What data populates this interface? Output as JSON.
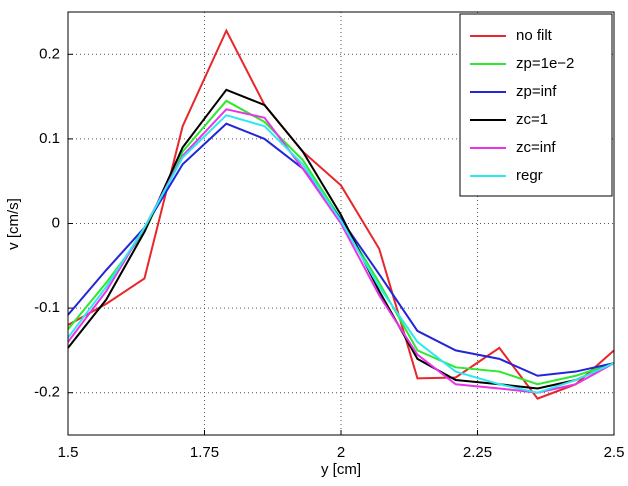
{
  "chart_data": {
    "type": "line",
    "xlabel": "y [cm]",
    "ylabel": "v [cm/s]",
    "x": [
      1.5,
      1.57,
      1.64,
      1.71,
      1.79,
      1.86,
      1.93,
      2.0,
      2.07,
      2.14,
      2.21,
      2.29,
      2.36,
      2.43,
      2.5
    ],
    "series": [
      {
        "name": "no filt",
        "color": "#e8262b",
        "values": [
          -0.12,
          -0.095,
          -0.065,
          0.115,
          0.228,
          0.14,
          0.085,
          0.045,
          -0.03,
          -0.183,
          -0.182,
          -0.147,
          -0.207,
          -0.19,
          -0.15
        ]
      },
      {
        "name": "zp=1e−2",
        "color": "#2ee82e",
        "values": [
          -0.125,
          -0.07,
          -0.01,
          0.085,
          0.145,
          0.12,
          0.075,
          0.005,
          -0.07,
          -0.15,
          -0.17,
          -0.175,
          -0.19,
          -0.18,
          -0.165
        ]
      },
      {
        "name": "zp=inf",
        "color": "#2424d8",
        "values": [
          -0.108,
          -0.055,
          -0.005,
          0.07,
          0.118,
          0.1,
          0.065,
          0.005,
          -0.06,
          -0.127,
          -0.15,
          -0.16,
          -0.18,
          -0.175,
          -0.165
        ]
      },
      {
        "name": "zc=1",
        "color": "#000000",
        "values": [
          -0.147,
          -0.09,
          -0.01,
          0.09,
          0.158,
          0.14,
          0.085,
          0.01,
          -0.08,
          -0.16,
          -0.185,
          -0.19,
          -0.195,
          -0.185,
          -0.165
        ]
      },
      {
        "name": "zc=inf",
        "color": "#e834e8",
        "values": [
          -0.14,
          -0.08,
          -0.005,
          0.08,
          0.135,
          0.125,
          0.065,
          0.0,
          -0.085,
          -0.155,
          -0.19,
          -0.195,
          -0.2,
          -0.19,
          -0.165
        ]
      },
      {
        "name": "regr",
        "color": "#2ee8f0",
        "values": [
          -0.135,
          -0.075,
          -0.005,
          0.078,
          0.128,
          0.115,
          0.07,
          0.003,
          -0.075,
          -0.14,
          -0.175,
          -0.19,
          -0.2,
          -0.185,
          -0.165
        ]
      }
    ],
    "xlim": [
      1.5,
      2.5
    ],
    "xticks": [
      1.5,
      1.75,
      2,
      2.25,
      2.5
    ],
    "ylim": [
      -0.25,
      0.25
    ],
    "yticks": [
      -0.2,
      -0.1,
      0,
      0.1,
      0.2
    ],
    "grid": true,
    "legend": "top-right"
  }
}
